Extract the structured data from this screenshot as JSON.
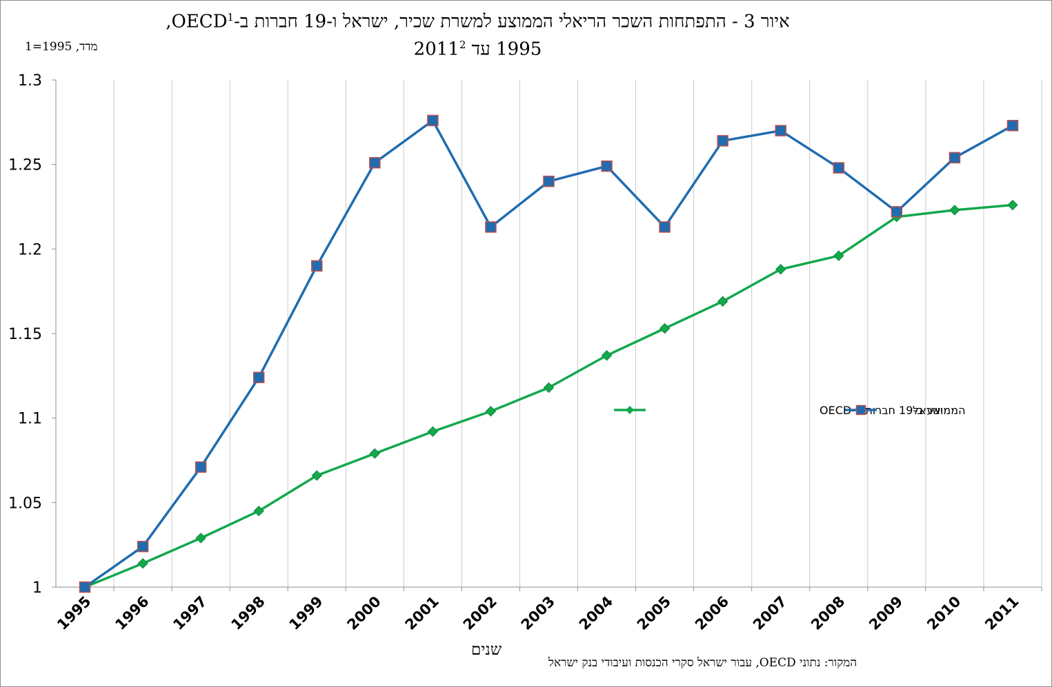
{
  "chart_data": {
    "type": "line",
    "title_line1": "איור 3 - התפתחות השכר הריאלי הממוצע למשרת שכיר, ישראל ו-19 חברות ב-OECD",
    "title_line1_sup": "1",
    "title_line1_end": ",",
    "title_line2": "1995 עד 2011",
    "title_line2_sup": "2",
    "ylabel": "מדד, 1995=1",
    "xlabel": "שנים",
    "source": "המקור: נתוני OECD, עבור ישראל סקרי הכנסות ועיבודי בנק ישראל",
    "ylim": [
      1,
      1.3
    ],
    "yticks": [
      "1",
      "1.05",
      "1.1",
      "1.15",
      "1.2",
      "1.25",
      "1.3"
    ],
    "grid": "vertical",
    "legend_position": "center-right",
    "categories": [
      "1995",
      "1996",
      "1997",
      "1998",
      "1999",
      "2000",
      "2001",
      "2002",
      "2003",
      "2004",
      "2005",
      "2006",
      "2007",
      "2008",
      "2009",
      "2010",
      "2011"
    ],
    "series": [
      {
        "name": "ישראל",
        "color": "#1f6cb0",
        "marker": "square",
        "values": [
          1.0,
          1.024,
          1.071,
          1.124,
          1.19,
          1.251,
          1.276,
          1.213,
          1.24,
          1.249,
          1.213,
          1.264,
          1.27,
          1.248,
          1.222,
          1.254,
          1.273
        ]
      },
      {
        "name": "הממוצע ב-19 חברות ב-OECD",
        "color": "#12a84b",
        "marker": "diamond",
        "values": [
          1.0,
          1.014,
          1.029,
          1.045,
          1.066,
          1.079,
          1.092,
          1.104,
          1.118,
          1.137,
          1.153,
          1.169,
          1.188,
          1.196,
          1.219,
          1.223,
          1.226
        ]
      }
    ]
  }
}
